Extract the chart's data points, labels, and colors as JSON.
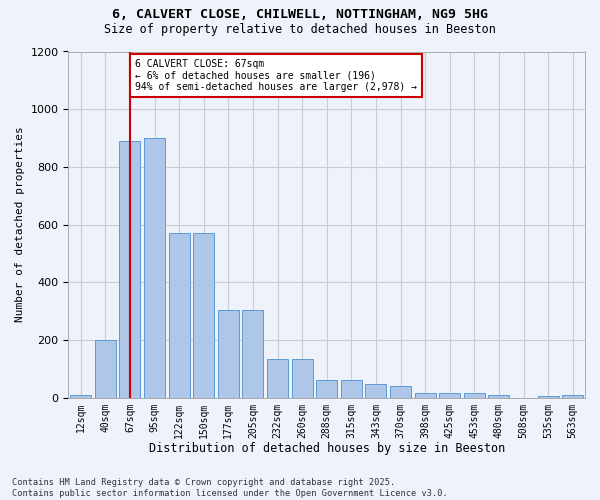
{
  "title1": "6, CALVERT CLOSE, CHILWELL, NOTTINGHAM, NG9 5HG",
  "title2": "Size of property relative to detached houses in Beeston",
  "xlabel": "Distribution of detached houses by size in Beeston",
  "ylabel": "Number of detached properties",
  "categories": [
    "12sqm",
    "40sqm",
    "67sqm",
    "95sqm",
    "122sqm",
    "150sqm",
    "177sqm",
    "205sqm",
    "232sqm",
    "260sqm",
    "288sqm",
    "315sqm",
    "343sqm",
    "370sqm",
    "398sqm",
    "425sqm",
    "453sqm",
    "480sqm",
    "508sqm",
    "535sqm",
    "563sqm"
  ],
  "values": [
    10,
    200,
    890,
    900,
    570,
    570,
    305,
    305,
    135,
    135,
    60,
    60,
    47,
    40,
    15,
    15,
    15,
    8,
    0,
    5,
    10
  ],
  "bar_color": "#aec6e8",
  "bar_edge_color": "#5b9bd5",
  "vline_x": 2,
  "annotation_text": "6 CALVERT CLOSE: 67sqm\n← 6% of detached houses are smaller (196)\n94% of semi-detached houses are larger (2,978) →",
  "annotation_box_color": "#ffffff",
  "annotation_box_edge": "#cc0000",
  "vline_color": "#cc0000",
  "ylim": [
    0,
    1200
  ],
  "yticks": [
    0,
    200,
    400,
    600,
    800,
    1000,
    1200
  ],
  "grid_color": "#cccccc",
  "bg_color": "#eef2fb",
  "footnote": "Contains HM Land Registry data © Crown copyright and database right 2025.\nContains public sector information licensed under the Open Government Licence v3.0."
}
